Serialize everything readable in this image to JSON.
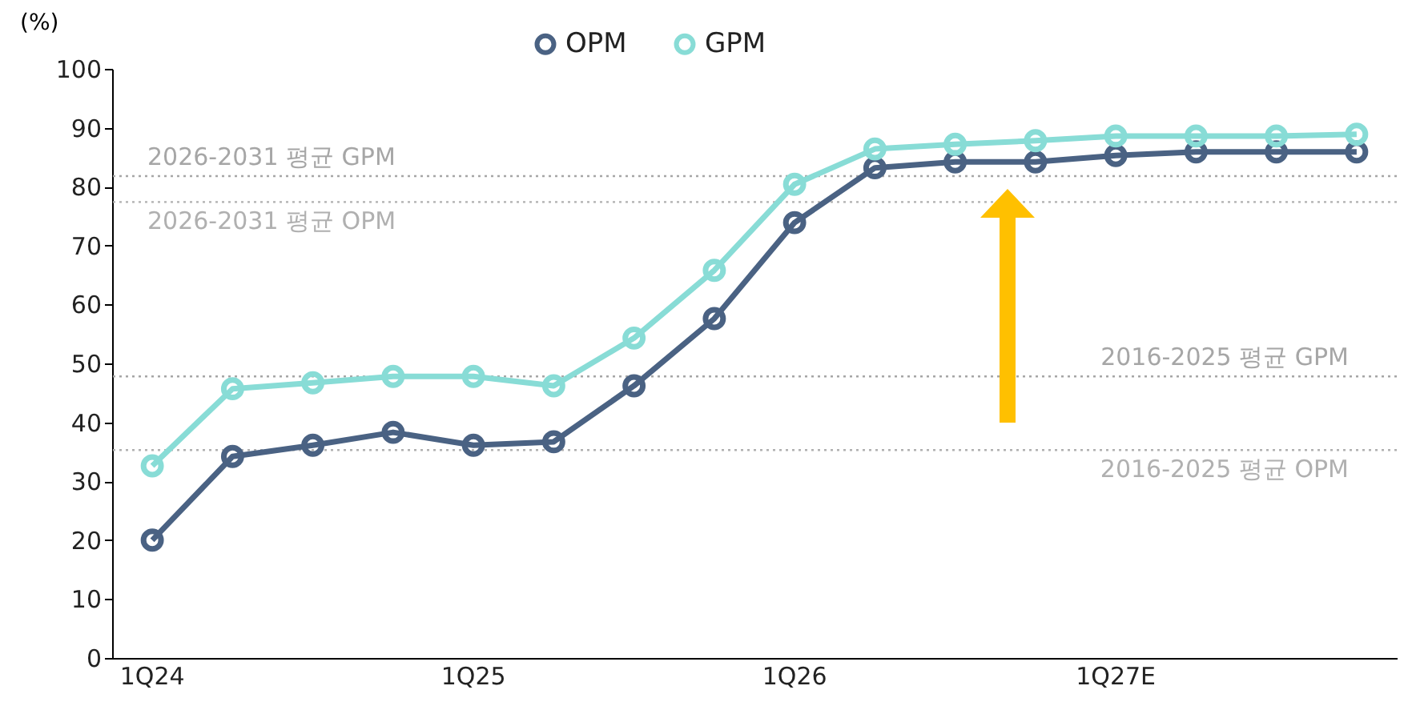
{
  "chart_data": {
    "type": "line",
    "ylabel": "(%)",
    "categories": [
      "1Q24",
      null,
      null,
      null,
      "1Q25",
      null,
      null,
      null,
      "1Q26",
      null,
      null,
      null,
      "1Q27E",
      null,
      null,
      null
    ],
    "series": [
      {
        "name": "OPM",
        "color": "#4a6283",
        "values": [
          20,
          34.2,
          36.1,
          38.3,
          36.1,
          36.7,
          46.2,
          57.6,
          73.9,
          83.2,
          84.2,
          84.2,
          85.3,
          85.9,
          85.9,
          85.9
        ]
      },
      {
        "name": "GPM",
        "color": "#88dcd6",
        "values": [
          32.6,
          45.7,
          46.7,
          47.8,
          47.8,
          46.2,
          54.3,
          65.8,
          80.4,
          86.4,
          87.2,
          87.8,
          88.6,
          88.6,
          88.6,
          88.9
        ]
      }
    ],
    "ylim": [
      0,
      100
    ],
    "yticks": [
      0,
      10,
      20,
      30,
      40,
      50,
      60,
      70,
      80,
      90,
      100
    ],
    "ref_lines": [
      {
        "axis": "y",
        "value": 81.8,
        "label": "2026-2031  평균 GPM",
        "color": "#a6a6a6",
        "line_style": "dotted"
      },
      {
        "axis": "y",
        "value": 77.4,
        "label": "2026-2031  평균 OPM",
        "color": "#b0b0b0",
        "line_style": "dotted"
      },
      {
        "axis": "y",
        "value": 47.8,
        "label": "2016-2025  평균 GPM",
        "color": "#a6a6a6",
        "line_style": "dotted"
      },
      {
        "axis": "y",
        "value": 35.3,
        "label": "2016-2025  평균 OPM",
        "color": "#b0b0b0",
        "line_style": "dotted"
      }
    ],
    "grid": false,
    "legend": "top",
    "marker": "circle",
    "line_style": "solid"
  }
}
